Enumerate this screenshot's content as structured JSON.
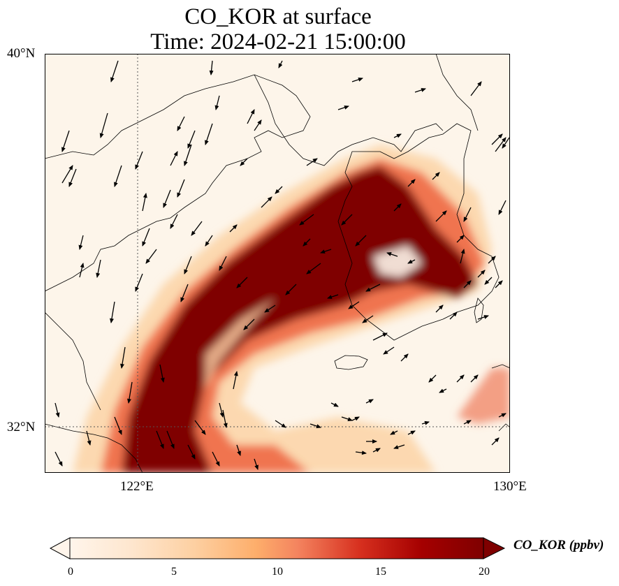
{
  "title_line1": "CO_KOR at surface",
  "title_line2": "Time: 2024-02-21 15:00:00",
  "map": {
    "lon_ticks": [
      "122°E",
      "130°E"
    ],
    "lat_ticks": [
      "40°N",
      "32°N"
    ],
    "lon_range": [
      120,
      130
    ],
    "lat_range": [
      31,
      40
    ],
    "gridline_lon": 122,
    "gridline_lat": 32
  },
  "colorbar": {
    "label": "CO_KOR (ppbv)",
    "ticks": [
      "0",
      "5",
      "10",
      "15",
      "20"
    ],
    "min": 0,
    "max": 20,
    "colormap": [
      "#fff5eb",
      "#fee6ce",
      "#fdd0a2",
      "#fdae6b",
      "#fd8d3c",
      "#f16913",
      "#d94801",
      "#a63603",
      "#7f2704"
    ],
    "extend": "both"
  },
  "colors": {
    "low": "#fff5eb",
    "high": "#7f0000"
  }
}
